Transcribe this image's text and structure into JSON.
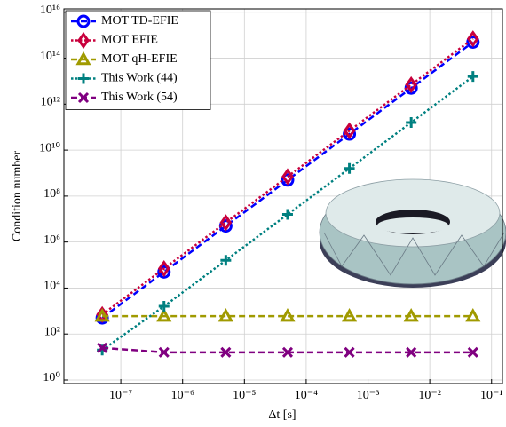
{
  "chart_data": {
    "type": "line",
    "x_label": "Δt [s]",
    "y_label": "Condition number",
    "log_x": true,
    "log_y": true,
    "grid": true,
    "legend": "upper left",
    "xlim": [
      1.2e-08,
      0.15
    ],
    "ylim": [
      0.7,
      1.4e+16
    ],
    "xticks": [
      {
        "value": 1e-07,
        "label": "10⁻⁷"
      },
      {
        "value": 1e-06,
        "label": "10⁻⁶"
      },
      {
        "value": 1e-05,
        "label": "10⁻⁵"
      },
      {
        "value": 0.0001,
        "label": "10⁻⁴"
      },
      {
        "value": 0.001,
        "label": "10⁻³"
      },
      {
        "value": 0.01,
        "label": "10⁻²"
      },
      {
        "value": 0.1,
        "label": "10⁻¹"
      }
    ],
    "yticks": [
      {
        "value": 1,
        "label": "10⁰"
      },
      {
        "value": 100,
        "label": "10²"
      },
      {
        "value": 10000,
        "label": "10⁴"
      },
      {
        "value": 1000000.0,
        "label": "10⁶"
      },
      {
        "value": 100000000.0,
        "label": "10⁸"
      },
      {
        "value": 10000000000.0,
        "label": "10¹⁰"
      },
      {
        "value": 1000000000000.0,
        "label": "10¹²"
      },
      {
        "value": 100000000000000.0,
        "label": "10¹⁴"
      },
      {
        "value": 1e+16,
        "label": "10¹⁶"
      }
    ],
    "x": [
      5e-08,
      5e-07,
      5e-06,
      5e-05,
      0.0005,
      0.005,
      0.05
    ],
    "series": [
      {
        "name": "MOT TD-EFIE",
        "color": "#0000ff",
        "marker": "circle",
        "dash": "dashed",
        "values": [
          500,
          50000,
          5000000.0,
          500000000.0,
          50000000000.0,
          5000000000000.0,
          500000000000000.0
        ]
      },
      {
        "name": "MOT EFIE",
        "color": "#c8003c",
        "marker": "diamond",
        "dash": "dotted",
        "values": [
          700,
          70000,
          7000000.0,
          700000000.0,
          70000000000.0,
          7000000000000.0,
          700000000000000.0
        ]
      },
      {
        "name": "MOT qH-EFIE",
        "color": "#a09a00",
        "marker": "triangle",
        "dash": "dashed",
        "values": [
          600,
          600,
          600,
          600,
          600,
          600,
          600
        ]
      },
      {
        "name": "This Work (44)",
        "color": "#008080",
        "marker": "plus",
        "dash": "dotted",
        "values": [
          20,
          1600,
          160000,
          16000000.0,
          1600000000.0,
          160000000000.0,
          16000000000000.0
        ]
      },
      {
        "name": "This Work (54)",
        "color": "#800080",
        "marker": "cross",
        "dash": "dashed",
        "values": [
          25,
          16,
          16,
          16,
          16,
          16,
          16
        ]
      }
    ]
  }
}
